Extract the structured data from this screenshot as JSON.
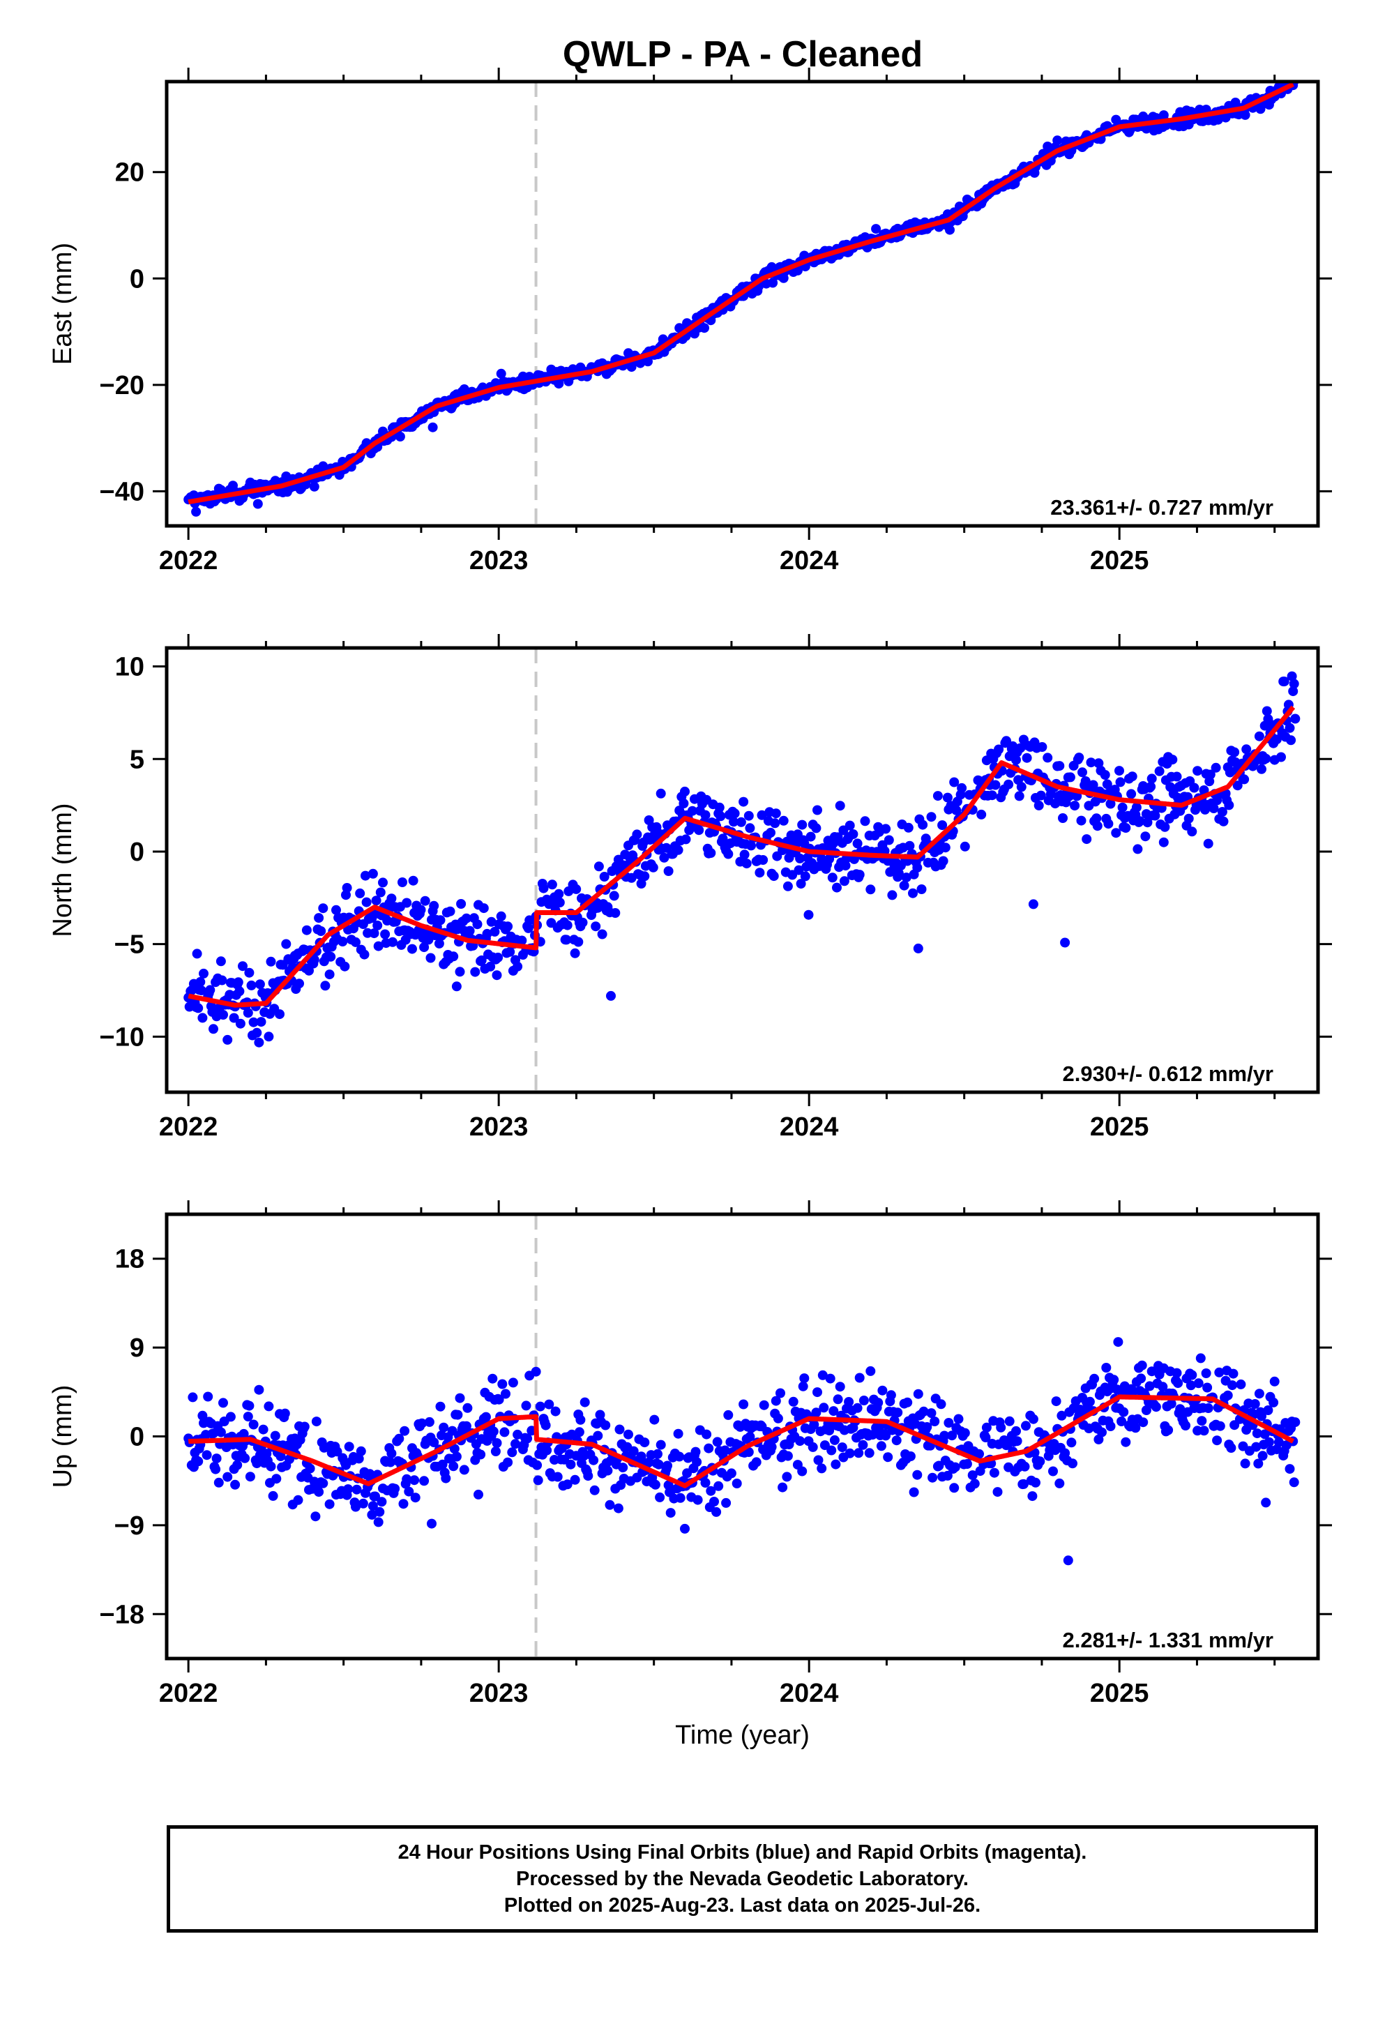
{
  "title": "QWLP  - PA - Cleaned",
  "footer": {
    "lines": [
      "24 Hour Positions Using Final Orbits (blue) and Rapid Orbits (magenta).",
      "Processed by the Nevada Geodetic Laboratory.",
      "Plotted on 2025-Aug-23. Last data on 2025-Jul-26."
    ]
  },
  "colors": {
    "points": "#0000ff",
    "fit": "#ff0000",
    "event_line": "#c8c8c8",
    "axes": "#000000"
  },
  "chart_data": [
    {
      "type": "scatter",
      "ylabel": "East (mm)",
      "xlim": [
        2021.93,
        2025.64
      ],
      "ylim": [
        -46.5,
        37
      ],
      "yticks": [
        -40,
        -20,
        0,
        20
      ],
      "xticks": [
        2022,
        2023,
        2024,
        2025
      ],
      "event_line_x": 2023.12,
      "rate_label": "23.361+/- 0.727 mm/yr",
      "fit_curve": {
        "x": [
          2022.0,
          2022.3,
          2022.5,
          2022.6,
          2022.8,
          2023.0,
          2023.3,
          2023.5,
          2023.7,
          2023.85,
          2024.0,
          2024.2,
          2024.45,
          2024.6,
          2024.8,
          2025.0,
          2025.2,
          2025.4,
          2025.56
        ],
        "y": [
          -42,
          -39,
          -35.5,
          -31,
          -24,
          -20.5,
          -17.5,
          -14,
          -6,
          0,
          3.5,
          7,
          11,
          17,
          24,
          28.5,
          30,
          32,
          36.5
        ]
      },
      "scatter_noise": 1.2
    },
    {
      "type": "scatter",
      "ylabel": "North (mm)",
      "xlim": [
        2021.93,
        2025.64
      ],
      "ylim": [
        -13,
        11
      ],
      "yticks": [
        -10,
        -5,
        0,
        5,
        10
      ],
      "xticks": [
        2022,
        2023,
        2024,
        2025
      ],
      "event_line_x": 2023.12,
      "rate_label": "2.930+/- 0.612 mm/yr",
      "fit_curve": {
        "x": [
          2022.0,
          2022.15,
          2022.25,
          2022.45,
          2022.6,
          2022.75,
          2022.9,
          2023.12,
          2023.121,
          2023.25,
          2023.45,
          2023.6,
          2023.8,
          2024.0,
          2024.2,
          2024.35,
          2024.5,
          2024.62,
          2024.8,
          2025.0,
          2025.2,
          2025.35,
          2025.56
        ],
        "y": [
          -7.8,
          -8.3,
          -8.2,
          -4.5,
          -3.0,
          -4.0,
          -4.8,
          -5.2,
          -3.3,
          -3.3,
          -0.5,
          1.8,
          0.8,
          0.0,
          -0.2,
          -0.3,
          2.0,
          4.8,
          3.5,
          2.8,
          2.5,
          3.5,
          7.8
        ]
      },
      "scatter_noise": 1.7
    },
    {
      "type": "scatter",
      "ylabel": "Up (mm)",
      "xlim": [
        2021.93,
        2025.64
      ],
      "ylim": [
        -22.5,
        22.5
      ],
      "yticks": [
        -18,
        -9,
        0,
        9,
        18
      ],
      "xticks": [
        2022,
        2023,
        2024,
        2025
      ],
      "xlabel": "Time (year)",
      "event_line_x": 2023.12,
      "rate_label": "2.281+/- 1.331 mm/yr",
      "fit_curve": {
        "x": [
          2022.0,
          2022.2,
          2022.4,
          2022.58,
          2022.8,
          2023.0,
          2023.12,
          2023.121,
          2023.3,
          2023.6,
          2023.8,
          2024.0,
          2024.25,
          2024.4,
          2024.55,
          2024.7,
          2025.0,
          2025.3,
          2025.56
        ],
        "y": [
          -0.5,
          -0.3,
          -2.5,
          -4.8,
          -1.5,
          1.8,
          2.0,
          -0.3,
          -0.8,
          -5.0,
          -1.0,
          1.8,
          1.5,
          -0.5,
          -2.5,
          -1.5,
          4.0,
          3.8,
          -0.5
        ]
      },
      "scatter_noise": 3.8
    }
  ]
}
